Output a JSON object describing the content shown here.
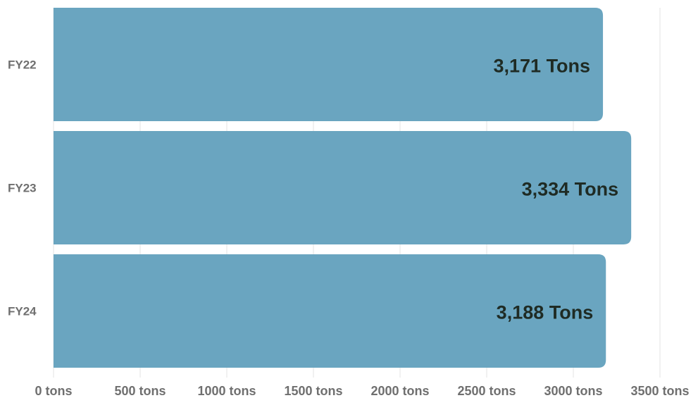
{
  "chart_data": {
    "type": "bar",
    "orientation": "horizontal",
    "title": "",
    "xlabel": "",
    "ylabel": "",
    "categories": [
      "FY22",
      "FY23",
      "FY24"
    ],
    "values": [
      3171,
      3334,
      3188
    ],
    "data_labels": [
      "3,171 Tons",
      "3,334 Tons",
      "3,188 Tons"
    ],
    "xlim": [
      0,
      3500
    ],
    "x_ticks": [
      0,
      500,
      1000,
      1500,
      2000,
      2500,
      3000,
      3500
    ],
    "x_tick_labels": [
      "0 tons",
      "500 tons",
      "1000 tons",
      "1500 tons",
      "2000 tons",
      "2500 tons",
      "3000 tons",
      "3500 tons"
    ],
    "grid": true,
    "legend": "none",
    "bar_color": "#6aa5c0",
    "label_color": "#1f2b24",
    "axis_text_color": "#6f6f6f"
  }
}
